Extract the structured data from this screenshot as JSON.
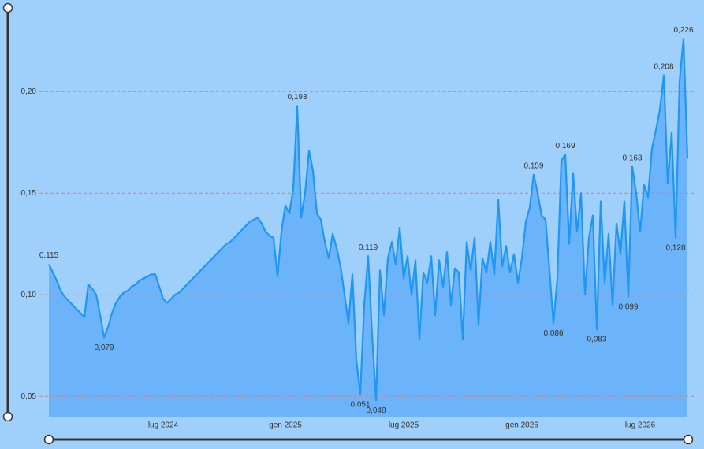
{
  "chart_data": {
    "type": "area",
    "categories": [
      null,
      null,
      null,
      null,
      null,
      null,
      null,
      null,
      null,
      null,
      null,
      null,
      null,
      null,
      null,
      null,
      null,
      null,
      null,
      null,
      null,
      null,
      null,
      null,
      null,
      null,
      null,
      null,
      null,
      "lug 2024",
      null,
      null,
      null,
      null,
      null,
      null,
      null,
      null,
      null,
      null,
      null,
      null,
      null,
      null,
      null,
      null,
      null,
      null,
      null,
      null,
      null,
      null,
      null,
      null,
      null,
      null,
      null,
      null,
      null,
      null,
      "gen 2025",
      null,
      null,
      null,
      null,
      null,
      null,
      null,
      null,
      null,
      null,
      null,
      null,
      null,
      null,
      null,
      null,
      null,
      null,
      null,
      null,
      null,
      null,
      null,
      null,
      null,
      null,
      null,
      null,
      null,
      "lug 2025",
      null,
      null,
      null,
      null,
      null,
      null,
      null,
      null,
      null,
      null,
      null,
      null,
      null,
      null,
      null,
      null,
      null,
      null,
      null,
      null,
      null,
      null,
      null,
      null,
      null,
      null,
      null,
      null,
      null,
      "gen 2026",
      null,
      null,
      null,
      null,
      null,
      null,
      null,
      null,
      null,
      null,
      null,
      null,
      null,
      null,
      null,
      null,
      null,
      null,
      null,
      null,
      null,
      null,
      null,
      null,
      null,
      null,
      null,
      null,
      null,
      "lug 2026",
      null,
      null,
      null,
      null,
      null,
      null,
      null,
      null,
      null,
      null,
      null,
      null
    ],
    "values": [
      0.115,
      0.111,
      0.107,
      0.102,
      0.099,
      0.097,
      0.095,
      0.093,
      0.091,
      0.089,
      0.105,
      0.103,
      0.1,
      0.09,
      0.079,
      0.084,
      0.091,
      0.096,
      0.099,
      0.101,
      0.102,
      0.104,
      0.105,
      0.107,
      0.108,
      0.109,
      0.11,
      0.11,
      0.104,
      0.098,
      0.096,
      0.098,
      0.1,
      0.101,
      0.103,
      0.105,
      0.107,
      0.109,
      0.111,
      0.113,
      0.115,
      0.117,
      0.119,
      0.121,
      0.123,
      0.125,
      0.126,
      0.128,
      0.13,
      0.132,
      0.134,
      0.136,
      0.137,
      0.138,
      0.135,
      0.131,
      0.129,
      0.128,
      0.109,
      0.131,
      0.144,
      0.14,
      0.152,
      0.193,
      0.138,
      0.15,
      0.171,
      0.161,
      0.14,
      0.137,
      0.126,
      0.118,
      0.13,
      0.123,
      0.114,
      0.1,
      0.086,
      0.11,
      0.068,
      0.051,
      0.095,
      0.119,
      0.08,
      0.048,
      0.112,
      0.09,
      0.118,
      0.126,
      0.115,
      0.133,
      0.108,
      0.119,
      0.1,
      0.117,
      0.078,
      0.111,
      0.106,
      0.119,
      0.09,
      0.117,
      0.104,
      0.121,
      0.095,
      0.113,
      0.111,
      0.078,
      0.126,
      0.112,
      0.128,
      0.085,
      0.118,
      0.111,
      0.126,
      0.11,
      0.147,
      0.114,
      0.124,
      0.111,
      0.12,
      0.106,
      0.118,
      0.136,
      0.143,
      0.159,
      0.15,
      0.139,
      0.137,
      0.112,
      0.086,
      0.108,
      0.166,
      0.169,
      0.125,
      0.16,
      0.131,
      0.15,
      0.1,
      0.128,
      0.139,
      0.083,
      0.146,
      0.106,
      0.13,
      0.095,
      0.135,
      0.12,
      0.146,
      0.099,
      0.163,
      0.15,
      0.131,
      0.154,
      0.148,
      0.172,
      0.181,
      0.191,
      0.208,
      0.155,
      0.18,
      0.128,
      0.205,
      0.226,
      0.167
    ],
    "value_labels": [
      "0,115",
      null,
      null,
      null,
      null,
      null,
      null,
      null,
      null,
      null,
      null,
      null,
      null,
      null,
      "0,079",
      null,
      null,
      null,
      null,
      null,
      null,
      null,
      null,
      null,
      null,
      null,
      null,
      null,
      null,
      null,
      null,
      null,
      null,
      null,
      null,
      null,
      null,
      null,
      null,
      null,
      null,
      null,
      null,
      null,
      null,
      null,
      null,
      null,
      null,
      null,
      null,
      null,
      null,
      null,
      null,
      null,
      null,
      null,
      null,
      null,
      null,
      null,
      null,
      "0,193",
      null,
      null,
      null,
      null,
      null,
      null,
      null,
      null,
      null,
      null,
      null,
      null,
      null,
      null,
      null,
      "0,051",
      null,
      "0,119",
      null,
      "0,048",
      null,
      null,
      null,
      null,
      null,
      null,
      null,
      null,
      null,
      null,
      null,
      null,
      null,
      null,
      null,
      null,
      null,
      null,
      null,
      null,
      null,
      null,
      null,
      null,
      null,
      null,
      null,
      null,
      null,
      null,
      null,
      null,
      null,
      null,
      null,
      null,
      null,
      null,
      null,
      "0,159",
      null,
      null,
      null,
      null,
      "0,086",
      null,
      null,
      "0,169",
      null,
      null,
      null,
      null,
      null,
      null,
      null,
      "0,083",
      null,
      null,
      null,
      null,
      null,
      null,
      null,
      "0,099",
      "0,163",
      null,
      null,
      null,
      null,
      null,
      null,
      null,
      "0,208",
      null,
      null,
      "0,128",
      null,
      "0,226",
      null
    ],
    "color": "#2196f3",
    "fill": "#6cb4f9",
    "ylim": [
      0.04,
      0.235
    ],
    "yticks": [
      {
        "value": 0.05,
        "label": "0,05"
      },
      {
        "value": 0.1,
        "label": "0,10"
      },
      {
        "value": 0.15,
        "label": "0,15"
      },
      {
        "value": 0.2,
        "label": "0,20"
      }
    ],
    "grid": true
  }
}
